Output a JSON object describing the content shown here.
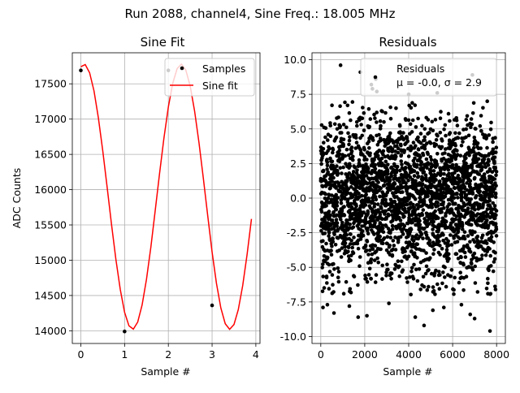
{
  "figure": {
    "suptitle": "Run 2088, channel4, Sine Freq.: 18.005 MHz"
  },
  "chart_data": [
    {
      "type": "line",
      "title": "Sine Fit",
      "xlabel": "Sample #",
      "ylabel": "ADC Counts",
      "xlim": [
        -0.195,
        4.095
      ],
      "ylim": [
        13820,
        17940
      ],
      "xticks": [
        0,
        1,
        2,
        3,
        4
      ],
      "yticks": [
        14000,
        14500,
        15000,
        15500,
        16000,
        16500,
        17000,
        17500
      ],
      "grid": true,
      "legend": {
        "placement": "top-right",
        "entries": [
          "Samples",
          "Sine fit"
        ]
      },
      "sine_fit_model": {
        "offset": 15900,
        "amplitude": 1880,
        "period_samples": 2.222,
        "phase_rad": 1.37,
        "x_start": 0,
        "x_end": 3.9,
        "x_step": 0.1
      },
      "series": [
        {
          "name": "Samples",
          "style": "scatter",
          "color": "#000000",
          "x": [
            0,
            1,
            2,
            3
          ],
          "y": [
            17690,
            13990,
            17690,
            14360
          ]
        },
        {
          "name": "Sine fit",
          "style": "line",
          "color": "#ff0000"
        }
      ]
    },
    {
      "type": "scatter",
      "title": "Residuals",
      "xlabel": "Sample #",
      "ylabel": "",
      "xlim": [
        -400,
        8400
      ],
      "ylim": [
        -10.5,
        10.5
      ],
      "xticks": [
        0,
        2000,
        4000,
        6000,
        8000
      ],
      "yticks": [
        -10.0,
        -7.5,
        -5.0,
        -2.5,
        0.0,
        2.5,
        5.0,
        7.5,
        10.0
      ],
      "grid": true,
      "legend": {
        "placement": "top-right",
        "entries": [
          "Residuals",
          "μ = -0.0, σ = 2.9"
        ]
      },
      "stats": {
        "mean": -0.0,
        "std": 2.9,
        "n_points": 8000,
        "x_range": [
          0,
          7999
        ]
      },
      "series": [
        {
          "name": "Residuals",
          "style": "scatter",
          "color": "#000000",
          "outliers_x": [
            100,
            300,
            600,
            900,
            1300,
            1700,
            1800,
            2100,
            2300,
            2350,
            2500,
            2550,
            3100,
            4000,
            4300,
            4700,
            5100,
            5300,
            5600,
            6400,
            6800,
            6900,
            7000,
            7700
          ],
          "outliers_y": [
            -7.9,
            -7.7,
            -8.3,
            9.6,
            -7.8,
            -8.6,
            9.1,
            -8.5,
            8.2,
            7.9,
            8.6,
            7.7,
            -7.6,
            7.5,
            -8.6,
            -9.2,
            -8.1,
            7.6,
            -7.9,
            -7.7,
            -8.4,
            8.9,
            -8.7,
            -9.6
          ]
        }
      ]
    }
  ]
}
